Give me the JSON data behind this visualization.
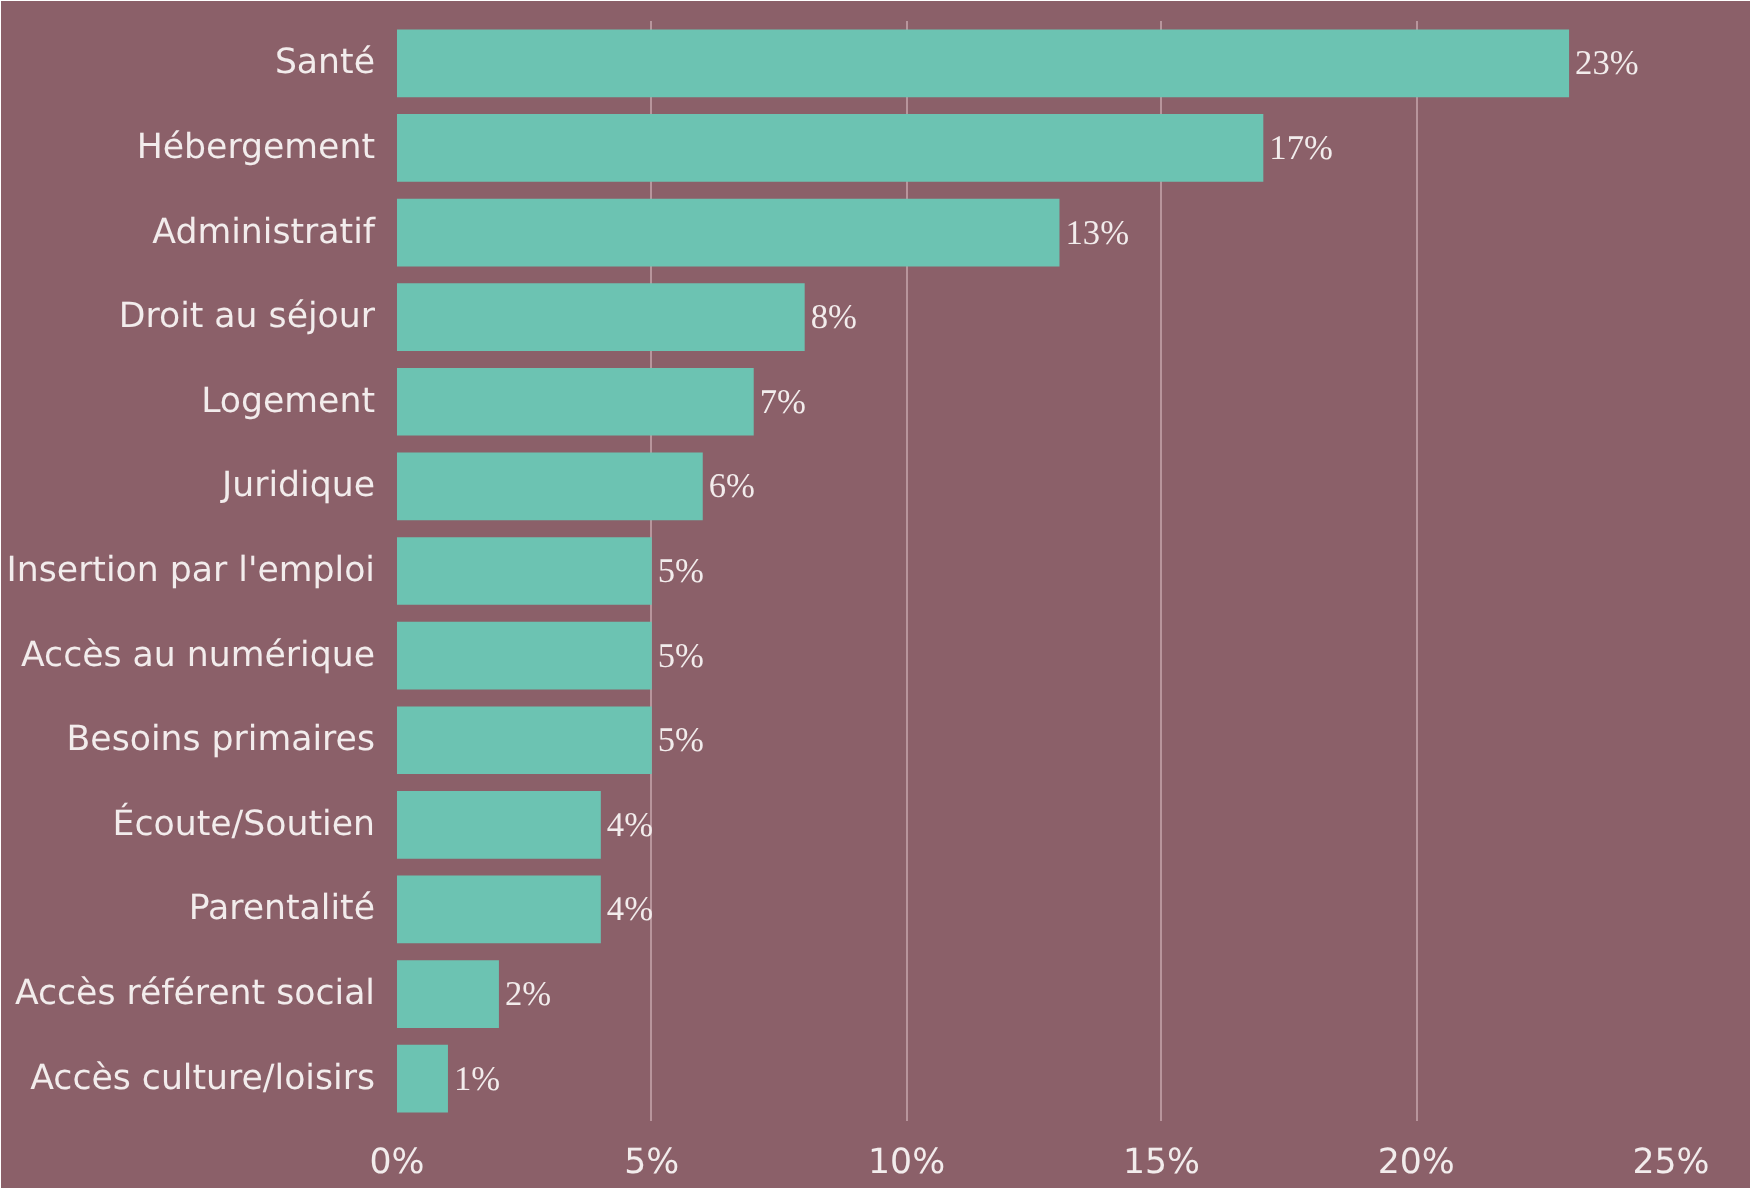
{
  "chart_data": {
    "type": "bar",
    "orientation": "horizontal",
    "categories": [
      "Santé",
      "Hébergement",
      "Administratif",
      "Droit au séjour",
      "Logement",
      "Juridique",
      "Insertion par l'emploi",
      "Accès au numérique",
      "Besoins primaires",
      "Écoute/Soutien",
      "Parentalité",
      "Accès référent social",
      "Accès culture/loisirs"
    ],
    "values": [
      23,
      17,
      13,
      8,
      7,
      6,
      5,
      5,
      5,
      4,
      4,
      2,
      1
    ],
    "value_labels": [
      "23%",
      "17%",
      "13%",
      "8%",
      "7%",
      "6%",
      "5%",
      "5%",
      "5%",
      "4%",
      "4%",
      "2%",
      "1%"
    ],
    "color": "#6cc3b2",
    "xlim": [
      0,
      25
    ],
    "xticks": [
      {
        "value": 0,
        "label": "0%"
      },
      {
        "value": 5,
        "label": "5%"
      },
      {
        "value": 10,
        "label": "10%"
      },
      {
        "value": 15,
        "label": "15%"
      },
      {
        "value": 20,
        "label": "20%"
      },
      {
        "value": 25,
        "label": "25%"
      }
    ],
    "grid": "x"
  }
}
